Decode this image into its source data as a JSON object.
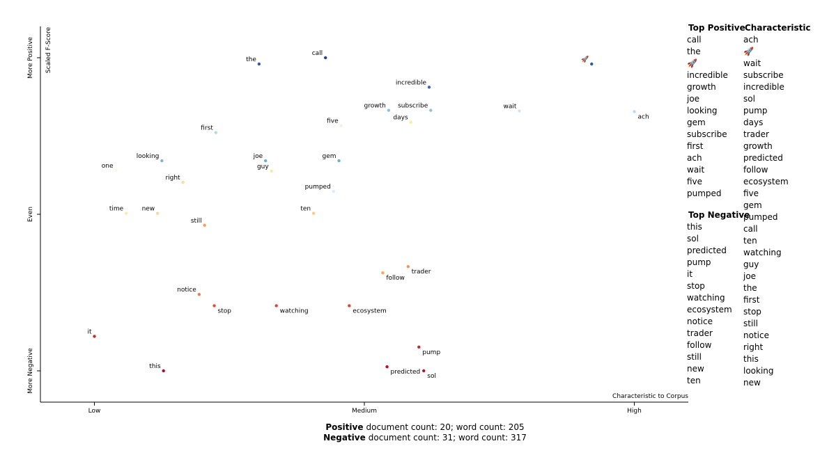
{
  "chart_data": {
    "type": "scatter",
    "ylabel": "Scaled F-Score",
    "xlabel": "Characteristic to Corpus",
    "xlim": [
      -0.1,
      1.1
    ],
    "ylim": [
      -0.1,
      1.1
    ],
    "xticks": [
      {
        "value": 0,
        "label": "Low"
      },
      {
        "value": 0.5,
        "label": "Medium"
      },
      {
        "value": 1,
        "label": "High"
      }
    ],
    "yticks": [
      {
        "value": 0,
        "label": "More Negative"
      },
      {
        "value": 0.5,
        "label": "Even"
      },
      {
        "value": 1,
        "label": "More Positive"
      }
    ],
    "labels": [
      "the",
      "call",
      "🚀",
      "incredible",
      "growth",
      "subscribe",
      "days",
      "wait",
      "ach",
      "five",
      "first",
      "looking",
      "one",
      "joe",
      "guy",
      "gem",
      "right",
      "pumped",
      "time",
      "new",
      "ten",
      "still",
      "follow",
      "trader",
      "notice",
      "stop",
      "watching",
      "ecosystem",
      "it",
      "pump",
      "predicted",
      "this",
      "sol"
    ],
    "x": [
      0.305,
      0.428,
      0.921,
      0.62,
      0.545,
      0.623,
      0.586,
      0.787,
      1.0,
      0.457,
      0.225,
      0.125,
      0.04,
      0.317,
      0.328,
      0.453,
      0.164,
      0.443,
      0.059,
      0.117,
      0.406,
      0.204,
      0.534,
      0.581,
      0.194,
      0.222,
      0.337,
      0.472,
      0.0,
      0.601,
      0.542,
      0.128,
      0.61
    ],
    "values": [
      0.98,
      1.0,
      0.98,
      0.906,
      0.832,
      0.832,
      0.794,
      0.83,
      0.828,
      0.783,
      0.761,
      0.671,
      0.64,
      0.671,
      0.638,
      0.671,
      0.602,
      0.573,
      0.503,
      0.503,
      0.503,
      0.465,
      0.313,
      0.333,
      0.244,
      0.208,
      0.208,
      0.208,
      0.11,
      0.076,
      0.013,
      0.0,
      0.0
    ],
    "colors": [
      "#2c5aa0",
      "#27409a",
      "#2c5aa0",
      "#3e62b3",
      "#8fbfe0",
      "#8fbfe0",
      "#f5f0a0",
      "#cfe8f3",
      "#b5ddee",
      "#eef7d8",
      "#b0d8ea",
      "#7fb3d8",
      "#f8f8e8",
      "#74acd5",
      "#fbe8a8",
      "#74acd5",
      "#fdd9a0",
      "#d6eef5",
      "#fde9b0",
      "#fdd49a",
      "#fdc78a",
      "#f59e64",
      "#fca664",
      "#f7945a",
      "#ef7d52",
      "#e04e3b",
      "#dc4438",
      "#d94536",
      "#c62a2a",
      "#cc2632",
      "#b8102a",
      "#a50d2b",
      "#b0122c"
    ]
  },
  "sidebar": {
    "top_positive": {
      "title": "Top Positive",
      "items": [
        "call",
        "the",
        "🚀",
        "incredible",
        "growth",
        "joe",
        "looking",
        "gem",
        "subscribe",
        "first",
        "ach",
        "wait",
        "five",
        "pumped"
      ]
    },
    "top_negative": {
      "title": "Top Negative",
      "items": [
        "this",
        "sol",
        "predicted",
        "pump",
        "it",
        "stop",
        "watching",
        "ecosystem",
        "notice",
        "trader",
        "follow",
        "still",
        "new",
        "ten"
      ]
    },
    "characteristic": {
      "title": "Characteristic",
      "items": [
        "ach",
        "🚀",
        "wait",
        "subscribe",
        "incredible",
        "sol",
        "pump",
        "days",
        "trader",
        "growth",
        "predicted",
        "follow",
        "ecosystem",
        "five",
        "gem",
        "pumped",
        "call",
        "ten",
        "watching",
        "guy",
        "joe",
        "the",
        "first",
        "stop",
        "still",
        "notice",
        "right",
        "this",
        "looking",
        "new"
      ]
    }
  },
  "footer": [
    {
      "category": "Positive",
      "text": "document count: 20; word count: 205"
    },
    {
      "category": "Negative",
      "text": "document count: 31; word count: 317"
    }
  ]
}
